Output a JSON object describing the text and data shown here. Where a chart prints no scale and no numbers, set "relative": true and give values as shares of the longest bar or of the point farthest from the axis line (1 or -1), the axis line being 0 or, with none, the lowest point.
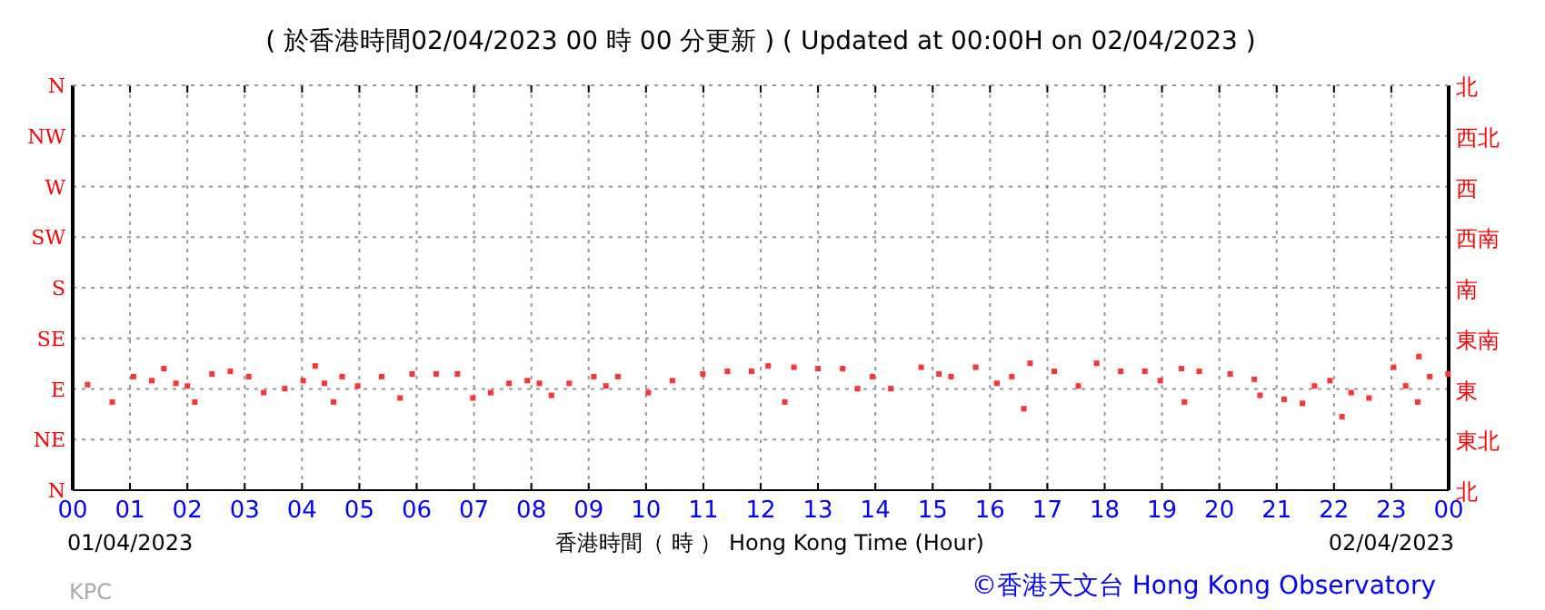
{
  "chart_data": {
    "type": "scatter",
    "title": "( 於香港時間02/04/2023 00 時 00 分更新 ) ( Updated at 00:00H on 02/04/2023 )",
    "xlabel": "香港時間（ 時 ） Hong Kong Time (Hour)",
    "annotations": [
      "01/04/2023",
      "02/04/2023",
      "KPC",
      "©香港天文台 Hong Kong Observatory"
    ],
    "xlim": [
      0,
      24
    ],
    "xticks": [
      {
        "value": 0,
        "label": "00"
      },
      {
        "value": 1,
        "label": "01"
      },
      {
        "value": 2,
        "label": "02"
      },
      {
        "value": 3,
        "label": "03"
      },
      {
        "value": 4,
        "label": "04"
      },
      {
        "value": 5,
        "label": "05"
      },
      {
        "value": 6,
        "label": "06"
      },
      {
        "value": 7,
        "label": "07"
      },
      {
        "value": 8,
        "label": "08"
      },
      {
        "value": 9,
        "label": "09"
      },
      {
        "value": 10,
        "label": "10"
      },
      {
        "value": 11,
        "label": "11"
      },
      {
        "value": 12,
        "label": "12"
      },
      {
        "value": 13,
        "label": "13"
      },
      {
        "value": 14,
        "label": "14"
      },
      {
        "value": 15,
        "label": "15"
      },
      {
        "value": 16,
        "label": "16"
      },
      {
        "value": 17,
        "label": "17"
      },
      {
        "value": 18,
        "label": "18"
      },
      {
        "value": 19,
        "label": "19"
      },
      {
        "value": 20,
        "label": "20"
      },
      {
        "value": 21,
        "label": "21"
      },
      {
        "value": 22,
        "label": "22"
      },
      {
        "value": 23,
        "label": "23"
      },
      {
        "value": 24,
        "label": "00"
      }
    ],
    "relative": true,
    "y_categories": [
      "N",
      "NW",
      "W",
      "SW",
      "S",
      "SE",
      "E",
      "NE",
      "N"
    ],
    "y2_categories": [
      "北",
      "西北",
      "西",
      "西南",
      "南",
      "東南",
      "東",
      "東北",
      "北"
    ],
    "grid": true,
    "marker": "square",
    "series": [
      {
        "color": "#ff3333",
        "x": [
          0.26,
          0.69,
          1.06,
          1.38,
          1.59,
          1.8,
          2.0,
          2.13,
          2.43,
          2.75,
          3.07,
          3.33,
          3.7,
          4.02,
          4.23,
          4.39,
          4.55,
          4.7,
          4.97,
          5.39,
          5.71,
          5.92,
          6.34,
          6.71,
          6.98,
          7.29,
          7.61,
          7.93,
          8.14,
          8.35,
          8.66,
          9.09,
          9.3,
          9.51,
          10.04,
          10.46,
          10.99,
          11.42,
          11.84,
          12.13,
          12.42,
          12.58,
          13.0,
          13.43,
          13.69,
          13.95,
          14.27,
          14.8,
          15.11,
          15.32,
          15.75,
          16.12,
          16.38,
          16.59,
          16.7,
          17.12,
          17.54,
          17.86,
          18.28,
          18.7,
          18.97,
          19.34,
          19.39,
          19.65,
          20.19,
          20.61,
          20.71,
          21.13,
          21.45,
          21.66,
          21.93,
          22.14,
          22.3,
          22.61,
          23.04,
          23.25,
          23.46,
          23.48,
          23.67,
          23.99
        ],
        "values": [
          0.79,
          0.66,
          0.85,
          0.82,
          0.91,
          0.8,
          0.78,
          0.66,
          0.87,
          0.89,
          0.85,
          0.73,
          0.76,
          0.82,
          0.93,
          0.8,
          0.66,
          0.85,
          0.78,
          0.85,
          0.69,
          0.87,
          0.87,
          0.87,
          0.69,
          0.73,
          0.8,
          0.82,
          0.8,
          0.71,
          0.8,
          0.85,
          0.78,
          0.85,
          0.73,
          0.82,
          0.87,
          0.89,
          0.89,
          0.93,
          0.66,
          0.92,
          0.91,
          0.91,
          0.76,
          0.85,
          0.76,
          0.92,
          0.87,
          0.85,
          0.92,
          0.8,
          0.85,
          0.61,
          0.95,
          0.89,
          0.78,
          0.95,
          0.89,
          0.89,
          0.82,
          0.91,
          0.66,
          0.89,
          0.87,
          0.83,
          0.71,
          0.68,
          0.65,
          0.78,
          0.82,
          0.55,
          0.73,
          0.69,
          0.92,
          0.78,
          0.66,
          1,
          0.85,
          0.87
        ]
      }
    ]
  }
}
